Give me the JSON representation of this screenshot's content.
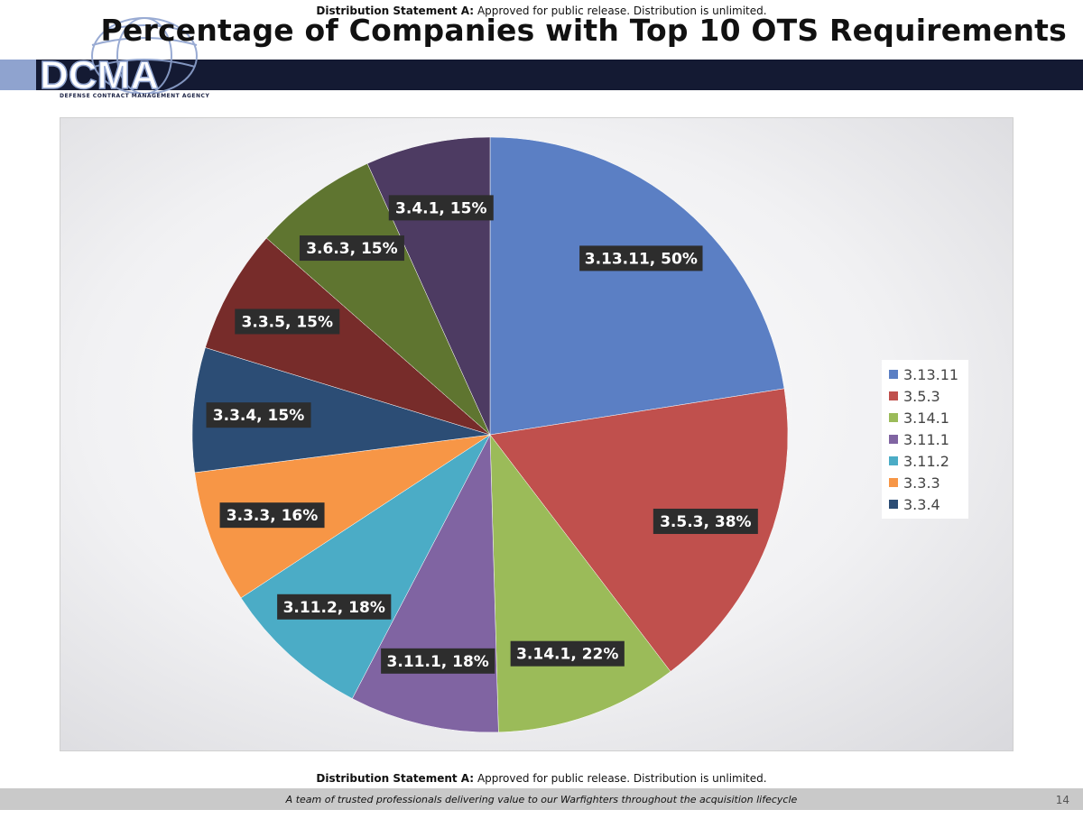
{
  "distribution": {
    "label": "Distribution Statement A:",
    "text": "Approved for public release. Distribution is unlimited."
  },
  "slide": {
    "title": "Percentage of Companies with Top 10 OTS Requirements",
    "page_number": "14",
    "tagline": "A team of trusted professionals delivering value to our Warfighters throughout the acquisition lifecycle"
  },
  "logo": {
    "text": "DCMA",
    "subtitle": "DEFENSE CONTRACT MANAGEMENT AGENCY"
  },
  "colors": {
    "header_bar": "#141a33",
    "label_bg": "#2d2d2d"
  },
  "chart_data": {
    "type": "pie",
    "title": "",
    "categories": [
      "3.13.11",
      "3.5.3",
      "3.14.1",
      "3.11.1",
      "3.11.2",
      "3.3.3",
      "3.3.4",
      "3.3.5",
      "3.6.3",
      "3.4.1"
    ],
    "values": [
      50,
      38,
      22,
      18,
      18,
      16,
      15,
      15,
      15,
      15
    ],
    "data_labels": [
      "3.13.11, 50%",
      "3.5.3, 38%",
      "3.14.1, 22%",
      "3.11.1, 18%",
      "3.11.2, 18%",
      "3.3.3, 16%",
      "3.3.4, 15%",
      "3.3.5, 15%",
      "3.6.3, 15%",
      "3.4.1, 15%"
    ],
    "colors": [
      "#5b7fc4",
      "#c0504d",
      "#9bbb59",
      "#8064a2",
      "#4bacc6",
      "#f79646",
      "#2c4d75",
      "#772c2a",
      "#5f7530",
      "#4d3b62"
    ],
    "legend": [
      "3.13.11",
      "3.5.3",
      "3.14.1",
      "3.11.1",
      "3.11.2",
      "3.3.3",
      "3.3.4"
    ],
    "legend_position": "right"
  }
}
